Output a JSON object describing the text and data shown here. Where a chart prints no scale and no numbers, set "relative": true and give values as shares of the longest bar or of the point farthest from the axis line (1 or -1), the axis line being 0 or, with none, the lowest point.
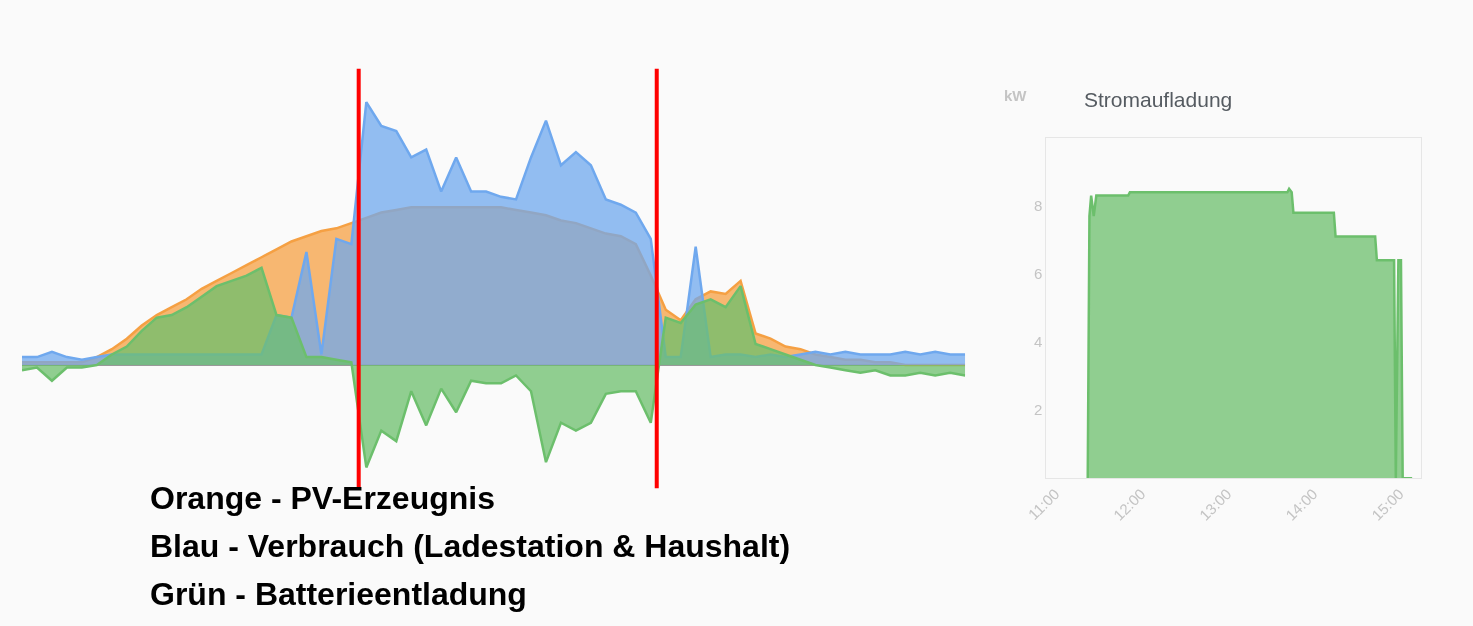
{
  "chart_data": [
    {
      "type": "area",
      "relative": true,
      "categories": [
        null,
        null,
        null,
        null,
        null,
        null,
        null,
        null,
        null,
        null,
        null,
        null,
        null,
        null,
        null,
        null,
        null,
        null,
        null,
        null,
        null,
        null,
        null,
        null,
        null,
        null,
        null,
        null,
        null,
        null,
        null,
        null,
        null,
        null,
        null,
        null,
        null,
        null,
        null,
        null,
        null,
        null,
        null,
        null,
        null,
        null,
        null,
        null,
        null,
        null,
        null,
        null,
        null,
        null,
        null,
        null,
        null,
        null,
        null,
        null,
        null,
        null,
        null,
        null
      ],
      "series": [
        {
          "color": "#f5a043",
          "values": [
            0.01,
            0.01,
            0.01,
            0.01,
            0.01,
            0.03,
            0.06,
            0.1,
            0.15,
            0.19,
            0.22,
            0.25,
            0.29,
            0.32,
            0.35,
            0.38,
            0.41,
            0.44,
            0.47,
            0.49,
            0.51,
            0.52,
            0.54,
            0.56,
            0.58,
            0.59,
            0.6,
            0.6,
            0.6,
            0.6,
            0.6,
            0.6,
            0.6,
            0.59,
            0.58,
            0.57,
            0.55,
            0.54,
            0.52,
            0.5,
            0.49,
            0.46,
            0.34,
            0.21,
            0.17,
            0.25,
            0.28,
            0.27,
            0.32,
            0.12,
            0.1,
            0.07,
            0.06,
            0.04,
            0.03,
            0.02,
            0.02,
            0.01,
            0.01,
            0,
            0,
            0,
            0,
            0
          ]
        },
        {
          "color": "#6fa8ee",
          "values": [
            0.03,
            0.03,
            0.05,
            0.03,
            0.02,
            0.03,
            0.04,
            0.04,
            0.04,
            0.04,
            0.04,
            0.04,
            0.04,
            0.04,
            0.04,
            0.04,
            0.04,
            0.19,
            0.18,
            0.43,
            0.04,
            0.48,
            0.46,
            1.0,
            0.91,
            0.89,
            0.79,
            0.82,
            0.66,
            0.79,
            0.66,
            0.66,
            0.64,
            0.63,
            0.79,
            0.93,
            0.76,
            0.81,
            0.76,
            0.63,
            0.61,
            0.58,
            0.48,
            0.03,
            0.03,
            0.45,
            0.03,
            0.04,
            0.04,
            0.03,
            0.04,
            0.03,
            0.04,
            0.05,
            0.04,
            0.05,
            0.04,
            0.04,
            0.04,
            0.05,
            0.04,
            0.05,
            0.04,
            0.04
          ]
        },
        {
          "color": "#6cbf6c",
          "values": [
            -0.02,
            -0.01,
            -0.06,
            -0.01,
            -0.01,
            0,
            0.04,
            0.07,
            0.13,
            0.18,
            0.19,
            0.22,
            0.26,
            0.3,
            0.32,
            0.34,
            0.37,
            0.19,
            0.18,
            0.03,
            0.03,
            0.02,
            0.01,
            -0.39,
            -0.25,
            -0.29,
            -0.1,
            -0.23,
            -0.09,
            -0.18,
            -0.06,
            -0.07,
            -0.07,
            -0.04,
            -0.1,
            -0.37,
            -0.22,
            -0.25,
            -0.22,
            -0.11,
            -0.1,
            -0.1,
            -0.22,
            0.18,
            0.16,
            0.23,
            0.25,
            0.22,
            0.3,
            0.08,
            0.06,
            0.04,
            0.02,
            0,
            -0.01,
            -0.02,
            -0.03,
            -0.02,
            -0.04,
            -0.04,
            -0.03,
            -0.04,
            -0.03,
            -0.04
          ]
        }
      ],
      "annotations": [
        "Orange - PV-Erzeugnis",
        "Blau - Verbrauch (Ladestation & Haushalt)",
        "Grün - Batterieentladung"
      ]
    },
    {
      "type": "area",
      "title": "Stromaufladung",
      "ylabel": "kW",
      "x": [
        11.38,
        11.4,
        11.42,
        11.45,
        11.48,
        11.5,
        11.6,
        11.85,
        11.87,
        12.5,
        12.55,
        13.7,
        13.72,
        13.75,
        13.77,
        14.24,
        14.26,
        14.72,
        14.74,
        14.94,
        14.96,
        14.99,
        15.02,
        15.04,
        15.15
      ],
      "series": [
        {
          "color": "#6cbf6c",
          "values": [
            0,
            7.7,
            8.3,
            7.7,
            8.3,
            8.3,
            8.3,
            8.3,
            8.4,
            8.4,
            8.4,
            8.4,
            8.5,
            8.4,
            7.8,
            7.8,
            7.1,
            7.1,
            6.4,
            6.4,
            0,
            6.4,
            6.4,
            0,
            0
          ]
        }
      ],
      "xlim": [
        10.9,
        15.25
      ],
      "xticks": [
        {
          "value": 11,
          "label": "11:00"
        },
        {
          "value": 12,
          "label": "12:00"
        },
        {
          "value": 13,
          "label": "13:00"
        },
        {
          "value": 14,
          "label": "14:00"
        },
        {
          "value": 15,
          "label": "15:00"
        }
      ],
      "ylim": [
        0,
        10
      ],
      "yticks": [
        2,
        4,
        6,
        8
      ]
    }
  ]
}
